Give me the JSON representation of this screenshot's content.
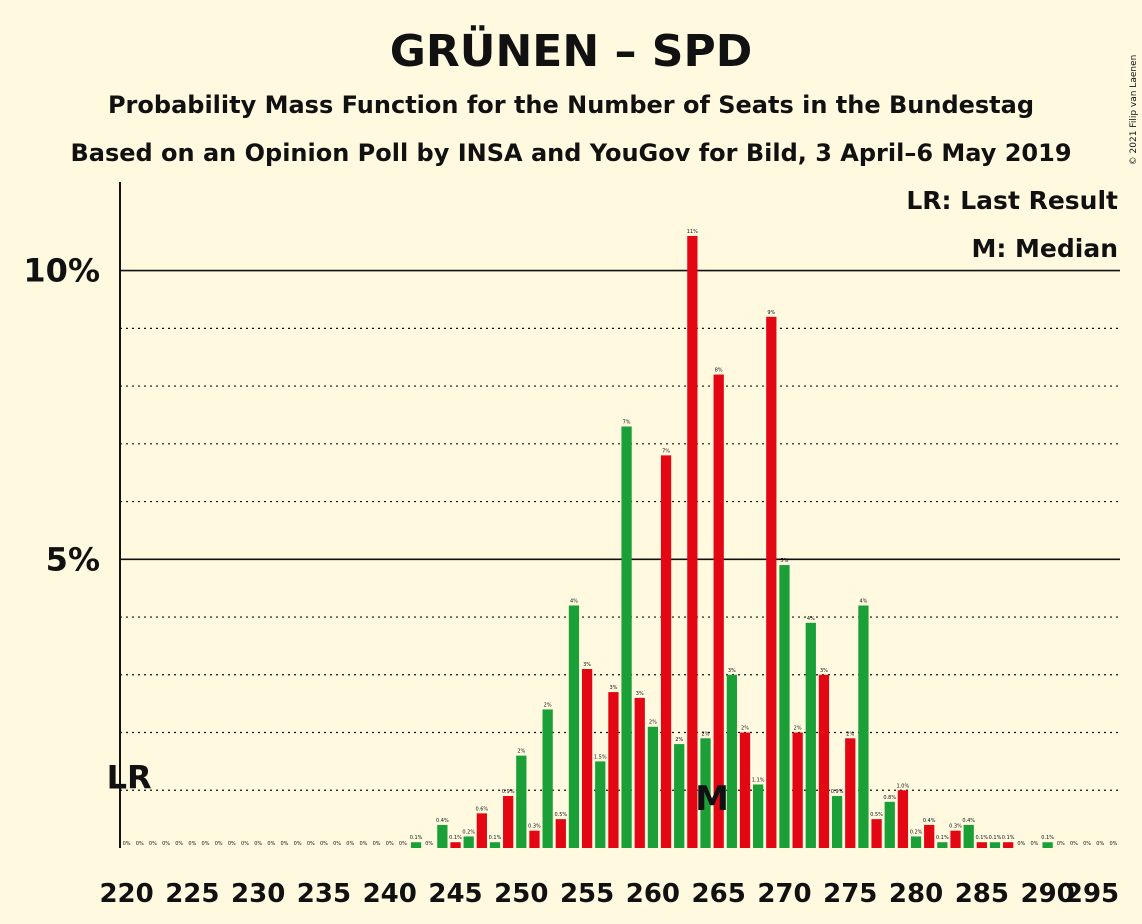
{
  "chart_data": {
    "type": "bar",
    "title": "GRÜNEN – SPD",
    "subtitle": "Probability Mass Function for the Number of Seats in the Bundestag",
    "subtitle2": "Based on an Opinion Poll by INSA and YouGov for Bild, 3 April–6 May 2019",
    "copyright": "© 2021 Filip van Laenen",
    "xlim": [
      220,
      295
    ],
    "ylim": [
      0,
      11.5
    ],
    "ytick_values": [
      5,
      10
    ],
    "ytick_labels": [
      "5%",
      "10%"
    ],
    "xtick_values": [
      220,
      225,
      230,
      235,
      240,
      245,
      250,
      255,
      260,
      265,
      270,
      275,
      280,
      285,
      290,
      295
    ],
    "xtick_labels": [
      "220",
      "225",
      "230",
      "235",
      "240",
      "245",
      "250",
      "255",
      "260",
      "265",
      "270",
      "275",
      "280",
      "285",
      "290",
      "295"
    ],
    "colors": {
      "odd": "#E30613",
      "even": "#1AA037",
      "background": "#FFF9E0"
    },
    "seats": [
      220,
      221,
      222,
      223,
      224,
      225,
      226,
      227,
      228,
      229,
      230,
      231,
      232,
      233,
      234,
      235,
      236,
      237,
      238,
      239,
      240,
      241,
      242,
      243,
      244,
      245,
      246,
      247,
      248,
      249,
      250,
      251,
      252,
      253,
      254,
      255,
      256,
      257,
      258,
      259,
      260,
      261,
      262,
      263,
      264,
      265,
      266,
      267,
      268,
      269,
      270,
      271,
      272,
      273,
      274,
      275,
      276,
      277,
      278,
      279,
      280,
      281,
      282,
      283,
      284,
      285,
      286,
      287,
      288,
      289,
      290,
      291,
      292,
      293,
      294,
      295
    ],
    "values": [
      0,
      0,
      0,
      0,
      0,
      0,
      0,
      0,
      0,
      0,
      0,
      0,
      0,
      0,
      0,
      0,
      0,
      0,
      0,
      0,
      0,
      0,
      0.1,
      0,
      0.4,
      0.1,
      0.2,
      0.6,
      0.1,
      0.9,
      1.6,
      0.3,
      2.4,
      0.5,
      4.2,
      3.1,
      1.5,
      2.7,
      7.3,
      2.6,
      2.1,
      6.8,
      1.8,
      10.6,
      1.9,
      8.2,
      3.0,
      2.0,
      1.1,
      9.2,
      4.9,
      2.0,
      3.9,
      3.0,
      0.9,
      1.9,
      4.2,
      0.5,
      0.8,
      1.0,
      0.2,
      0.4,
      0.1,
      0.3,
      0.4,
      0.1,
      0.1,
      0.1,
      0,
      0,
      0.1,
      0,
      0,
      0,
      0,
      0
    ],
    "labels": [
      "0%",
      "0%",
      "0%",
      "0%",
      "0%",
      "0%",
      "0%",
      "0%",
      "0%",
      "0%",
      "0%",
      "0%",
      "0%",
      "0%",
      "0%",
      "0%",
      "0%",
      "0%",
      "0%",
      "0%",
      "0%",
      "0%",
      "0.1%",
      "0%",
      "0.4%",
      "0.1%",
      "0.2%",
      "0.6%",
      "0.1%",
      "0.9%",
      "2%",
      "0.3%",
      "2%",
      "0.5%",
      "4%",
      "3%",
      "1.5%",
      "3%",
      "7%",
      "3%",
      "2%",
      "7%",
      "2%",
      "11%",
      "2%",
      "8%",
      "3%",
      "2%",
      "1.1%",
      "9%",
      "5%",
      "2%",
      "4%",
      "3%",
      "0.9%",
      "2%",
      "4%",
      "0.5%",
      "0.8%",
      "1.0%",
      "0.2%",
      "0.4%",
      "0.1%",
      "0.3%",
      "0.4%",
      "0.1%",
      "0.1%",
      "0.1%",
      "0%",
      "0%",
      "0.1%",
      "0%",
      "0%",
      "0%",
      "0%",
      "0%"
    ],
    "last_result": {
      "seat": 220,
      "value": 1.0,
      "label": "LR"
    },
    "median": {
      "seat": 265,
      "label": "M"
    },
    "legend": {
      "lr": "LR: Last Result",
      "median": "M: Median",
      "placement": "top-right"
    }
  }
}
